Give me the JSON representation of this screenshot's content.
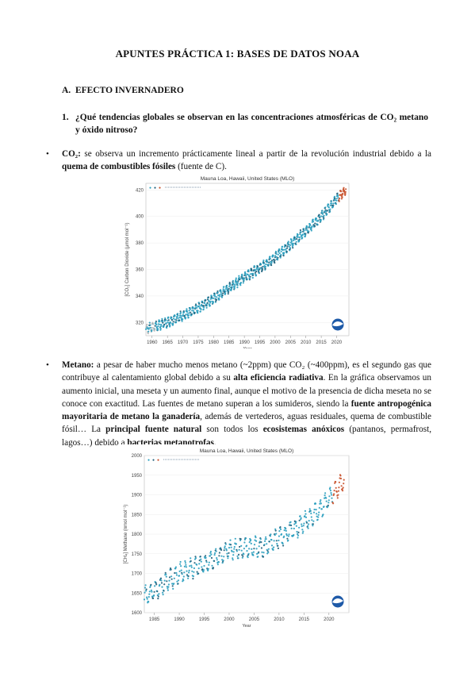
{
  "doc": {
    "title": "APUNTES PRÁCTICA 1: BASES DE DATOS NOAA",
    "section_letter": "A.",
    "section": "EFECTO INVERNADERO",
    "question_num": "1.",
    "question": "¿Qué tendencias globales se observan en las concentraciones atmosféricas de CO₂ metano y óxido nitroso?"
  },
  "co2": {
    "bullet": "•",
    "lead": "CO₂:",
    "text1": " se observa un incremento prácticamente lineal a partir de la revolución industrial debido a la ",
    "bold1": "quema de combustibles fósiles",
    "text2": " (fuente de C)."
  },
  "metano": {
    "bullet": "•",
    "lead": "Metano:",
    "t1": " a pesar de haber mucho menos metano (~2ppm) que CO₂ (~400ppm), es el segundo gas que contribuye al calentamiento global debido a su ",
    "b1": "alta eficiencia radiativa",
    "t2": ". En la gráfica observamos un aumento inicial, una meseta y un aumento final, aunque el motivo de la presencia de dicha meseta no se conoce con exactitud. Las fuentes de metano superan a los sumideros, siendo la ",
    "b2": "fuente antropogénica mayoritaria de metano la ganadería",
    "t3": ", además de vertederos, aguas residuales, quema de combustible fósil… La ",
    "b3": "principal fuente natural",
    "t4": " son todos los ",
    "b4": "ecosistemas anóxicos",
    "t5": " (pantanos, permafrost, lagos…) debido a ",
    "b5": "bacterias metanotrofas",
    "t6": "."
  },
  "chart_data": [
    {
      "type": "scatter",
      "title": "Mauna Loa, Hawaii, United States (MLO)",
      "xlabel": "Year",
      "ylabel": "[CO₂] Carbon Dioxide (μmol mol⁻¹)",
      "xlim": [
        1958,
        2024
      ],
      "ylim": [
        310,
        425
      ],
      "xticks": [
        "1960",
        "1965",
        "1970",
        "1975",
        "1980",
        "1985",
        "1990",
        "1995",
        "2000",
        "2005",
        "2010",
        "2015",
        "2020"
      ],
      "yticks": [
        "320",
        "340",
        "360",
        "380",
        "400",
        "420"
      ],
      "legend": [
        "●",
        "●",
        "●"
      ],
      "series_colors": [
        "#2a9fbf",
        "#1f5f7a",
        "#c8502a"
      ],
      "trend": [
        {
          "x": 1958,
          "y": 315
        },
        {
          "x": 1965,
          "y": 320
        },
        {
          "x": 1970,
          "y": 325
        },
        {
          "x": 1975,
          "y": 331
        },
        {
          "x": 1980,
          "y": 338
        },
        {
          "x": 1985,
          "y": 346
        },
        {
          "x": 1990,
          "y": 354
        },
        {
          "x": 1995,
          "y": 361
        },
        {
          "x": 2000,
          "y": 369
        },
        {
          "x": 2005,
          "y": 379
        },
        {
          "x": 2010,
          "y": 389
        },
        {
          "x": 2015,
          "y": 400
        },
        {
          "x": 2020,
          "y": 413
        },
        {
          "x": 2023,
          "y": 420
        }
      ],
      "seasonal_amplitude": 3.2
    },
    {
      "type": "scatter",
      "title": "Mauna Loa, Hawaii, United States (MLO)",
      "xlabel": "Year",
      "ylabel": "[CH₄] Methane (nmol mol⁻¹)",
      "xlim": [
        1983,
        2024
      ],
      "ylim": [
        1600,
        2000
      ],
      "xticks": [
        "1985",
        "1990",
        "1995",
        "2000",
        "2005",
        "2010",
        "2015",
        "2020"
      ],
      "yticks": [
        "1600",
        "1650",
        "1700",
        "1750",
        "1800",
        "1850",
        "1900",
        "1950",
        "2000"
      ],
      "legend": [
        "●",
        "●",
        "●"
      ],
      "series_colors": [
        "#2a9fbf",
        "#1f5f7a",
        "#c8502a"
      ],
      "trend": [
        {
          "x": 1983,
          "y": 1640
        },
        {
          "x": 1986,
          "y": 1665
        },
        {
          "x": 1990,
          "y": 1700
        },
        {
          "x": 1993,
          "y": 1715
        },
        {
          "x": 1996,
          "y": 1730
        },
        {
          "x": 2000,
          "y": 1760
        },
        {
          "x": 2004,
          "y": 1765
        },
        {
          "x": 2007,
          "y": 1768
        },
        {
          "x": 2010,
          "y": 1790
        },
        {
          "x": 2014,
          "y": 1820
        },
        {
          "x": 2018,
          "y": 1860
        },
        {
          "x": 2021,
          "y": 1905
        },
        {
          "x": 2023,
          "y": 1935
        }
      ],
      "seasonal_amplitude": 22
    }
  ]
}
